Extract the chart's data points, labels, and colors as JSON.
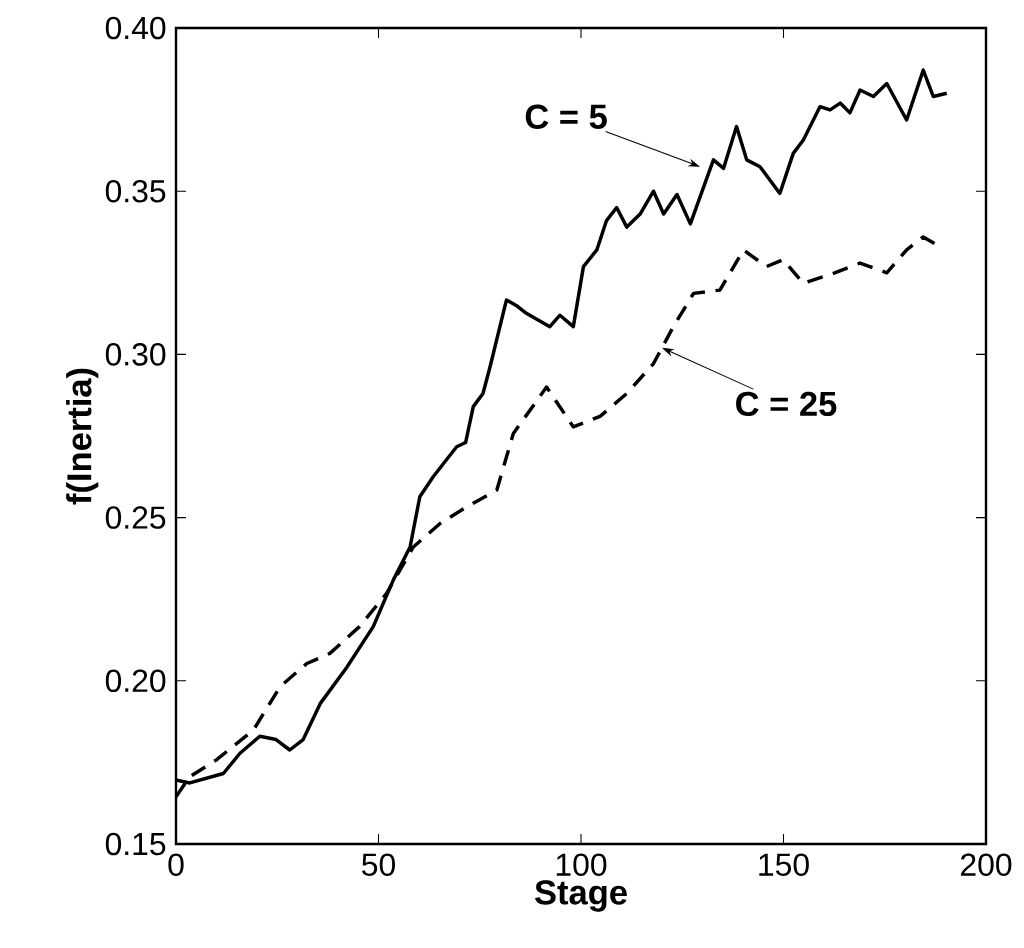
{
  "chart_data": {
    "type": "line",
    "xlabel": "Stage",
    "ylabel": "f(Inertia)",
    "xlim": [
      0,
      200
    ],
    "ylim": [
      0.15,
      0.4
    ],
    "xticks": [
      0,
      50,
      100,
      150,
      200
    ],
    "yticks": [
      {
        "value": 0.15,
        "label": "0.15"
      },
      {
        "value": 0.2,
        "label": "0.20"
      },
      {
        "value": 0.25,
        "label": "0.25"
      },
      {
        "value": 0.3,
        "label": "0.30"
      },
      {
        "value": 0.35,
        "label": "0.35"
      },
      {
        "value": 0.4,
        "label": "0.40"
      }
    ],
    "grid": false,
    "marker": "none",
    "series": [
      {
        "color": "#000000",
        "line_style": "solid",
        "x": [
          0,
          3.4,
          11.7,
          15.8,
          20.7,
          24.7,
          28.1,
          31.4,
          35.6,
          42.1,
          48.7,
          53.7,
          57.8,
          60.2,
          63.5,
          69.3,
          71.5,
          73.4,
          75.8,
          77.5,
          81.6,
          84,
          86.5,
          92.3,
          94.8,
          98.1,
          100.6,
          103.9,
          106.3,
          108.8,
          111.3,
          114.6,
          117.9,
          120.4,
          123.7,
          127,
          130.2,
          132.7,
          135.2,
          138.4,
          140.9,
          144.2,
          149.1,
          152.4,
          154.9,
          159,
          161.5,
          164,
          166.4,
          168.9,
          172.2,
          175.5,
          180.4,
          184.5,
          187,
          190.3
        ],
        "values": [
          0.1696,
          0.1687,
          0.1716,
          0.1778,
          0.183,
          0.182,
          0.1788,
          0.182,
          0.193,
          0.204,
          0.2166,
          0.231,
          0.241,
          0.2564,
          0.2625,
          0.2717,
          0.273,
          0.284,
          0.288,
          0.296,
          0.3167,
          0.315,
          0.3126,
          0.3085,
          0.312,
          0.3085,
          0.3269,
          0.332,
          0.341,
          0.345,
          0.339,
          0.343,
          0.35,
          0.343,
          0.349,
          0.34,
          0.351,
          0.3596,
          0.357,
          0.3698,
          0.3596,
          0.3575,
          0.3493,
          0.3616,
          0.3657,
          0.3759,
          0.3749,
          0.377,
          0.374,
          0.381,
          0.379,
          0.383,
          0.3718,
          0.3871,
          0.379,
          0.38
        ]
      },
      {
        "color": "#000000",
        "line_style": "dashed",
        "x": [
          0,
          3.4,
          9.9,
          19.1,
          25.7,
          32.3,
          38,
          45.3,
          52,
          58.6,
          65.2,
          71.8,
          79.2,
          83.3,
          91.5,
          98.1,
          104.7,
          111.3,
          117.9,
          122.8,
          127.8,
          134.3,
          140.1,
          145.8,
          149.9,
          154.9,
          162.3,
          168.9,
          175.5,
          180.4,
          184.5,
          188.6
        ],
        "values": [
          0.1645,
          0.1706,
          0.1757,
          0.1849,
          0.1982,
          0.2053,
          0.2084,
          0.2166,
          0.2268,
          0.241,
          0.2482,
          0.2533,
          0.2584,
          0.2758,
          0.29,
          0.2778,
          0.281,
          0.288,
          0.2972,
          0.3085,
          0.3187,
          0.3197,
          0.332,
          0.3269,
          0.329,
          0.3218,
          0.3248,
          0.328,
          0.325,
          0.332,
          0.336,
          0.333
        ]
      }
    ],
    "annotations": [
      {
        "text": "C = 5",
        "x": 129.4,
        "y": 0.3575
      },
      {
        "text": "C = 25",
        "x": 120,
        "y": 0.302
      }
    ]
  }
}
